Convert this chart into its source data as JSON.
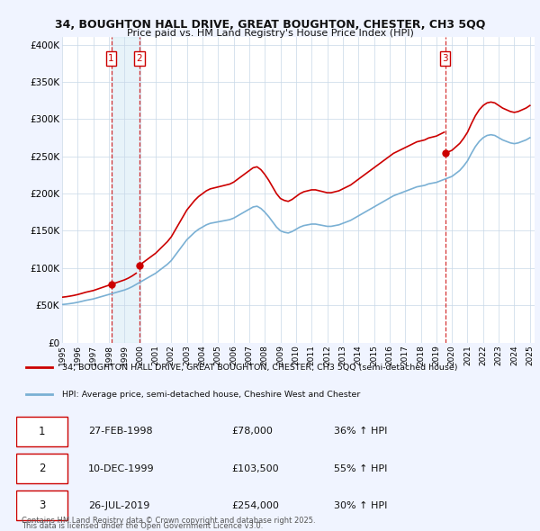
{
  "title1": "34, BOUGHTON HALL DRIVE, GREAT BOUGHTON, CHESTER, CH3 5QQ",
  "title2": "Price paid vs. HM Land Registry's House Price Index (HPI)",
  "legend_line1": "34, BOUGHTON HALL DRIVE, GREAT BOUGHTON, CHESTER, CH3 5QQ (semi-detached house)",
  "legend_line2": "HPI: Average price, semi-detached house, Cheshire West and Chester",
  "footer1": "Contains HM Land Registry data © Crown copyright and database right 2025.",
  "footer2": "This data is licensed under the Open Government Licence v3.0.",
  "sale_color": "#cc0000",
  "hpi_color": "#7ab0d4",
  "shade_color": "#d0e8f5",
  "background_color": "#f0f4ff",
  "plot_bg": "#ffffff",
  "ylim": [
    0,
    410000
  ],
  "yticks": [
    0,
    50000,
    100000,
    150000,
    200000,
    250000,
    300000,
    350000,
    400000
  ],
  "ytick_labels": [
    "£0",
    "£50K",
    "£100K",
    "£150K",
    "£200K",
    "£250K",
    "£300K",
    "£350K",
    "£400K"
  ],
  "table_data": [
    [
      "1",
      "27-FEB-1998",
      "£78,000",
      "36% ↑ HPI"
    ],
    [
      "2",
      "10-DEC-1999",
      "£103,500",
      "55% ↑ HPI"
    ],
    [
      "3",
      "26-JUL-2019",
      "£254,000",
      "30% ↑ HPI"
    ]
  ],
  "sale_dates": [
    1998.15,
    1999.94,
    2019.56
  ],
  "sale_prices": [
    78000,
    103500,
    254000
  ],
  "hpi_dates": [
    1995.0,
    1995.25,
    1995.5,
    1995.75,
    1996.0,
    1996.25,
    1996.5,
    1996.75,
    1997.0,
    1997.25,
    1997.5,
    1997.75,
    1998.0,
    1998.25,
    1998.5,
    1998.75,
    1999.0,
    1999.25,
    1999.5,
    1999.75,
    2000.0,
    2000.25,
    2000.5,
    2000.75,
    2001.0,
    2001.25,
    2001.5,
    2001.75,
    2002.0,
    2002.25,
    2002.5,
    2002.75,
    2003.0,
    2003.25,
    2003.5,
    2003.75,
    2004.0,
    2004.25,
    2004.5,
    2004.75,
    2005.0,
    2005.25,
    2005.5,
    2005.75,
    2006.0,
    2006.25,
    2006.5,
    2006.75,
    2007.0,
    2007.25,
    2007.5,
    2007.75,
    2008.0,
    2008.25,
    2008.5,
    2008.75,
    2009.0,
    2009.25,
    2009.5,
    2009.75,
    2010.0,
    2010.25,
    2010.5,
    2010.75,
    2011.0,
    2011.25,
    2011.5,
    2011.75,
    2012.0,
    2012.25,
    2012.5,
    2012.75,
    2013.0,
    2013.25,
    2013.5,
    2013.75,
    2014.0,
    2014.25,
    2014.5,
    2014.75,
    2015.0,
    2015.25,
    2015.5,
    2015.75,
    2016.0,
    2016.25,
    2016.5,
    2016.75,
    2017.0,
    2017.25,
    2017.5,
    2017.75,
    2018.0,
    2018.25,
    2018.5,
    2018.75,
    2019.0,
    2019.25,
    2019.5,
    2019.75,
    2020.0,
    2020.25,
    2020.5,
    2020.75,
    2021.0,
    2021.25,
    2021.5,
    2021.75,
    2022.0,
    2022.25,
    2022.5,
    2022.75,
    2023.0,
    2023.25,
    2023.5,
    2023.75,
    2024.0,
    2024.25,
    2024.5,
    2024.75,
    2025.0
  ],
  "hpi_values": [
    51000,
    51500,
    52200,
    53000,
    54000,
    55200,
    56500,
    57500,
    58500,
    60000,
    61500,
    63000,
    64500,
    66000,
    67500,
    69000,
    70500,
    72500,
    75000,
    78000,
    81000,
    84000,
    87000,
    90000,
    93000,
    97000,
    101000,
    105000,
    110000,
    117000,
    124000,
    131000,
    138000,
    143000,
    148000,
    152000,
    155000,
    158000,
    160000,
    161000,
    162000,
    163000,
    164000,
    165000,
    167000,
    170000,
    173000,
    176000,
    179000,
    182000,
    183000,
    180000,
    175000,
    169000,
    162000,
    155000,
    150000,
    148000,
    147000,
    149000,
    152000,
    155000,
    157000,
    158000,
    159000,
    159000,
    158000,
    157000,
    156000,
    156000,
    157000,
    158000,
    160000,
    162000,
    164000,
    167000,
    170000,
    173000,
    176000,
    179000,
    182000,
    185000,
    188000,
    191000,
    194000,
    197000,
    199000,
    201000,
    203000,
    205000,
    207000,
    209000,
    210000,
    211000,
    213000,
    214000,
    215000,
    217000,
    219000,
    221000,
    223000,
    227000,
    231000,
    237000,
    244000,
    254000,
    263000,
    270000,
    275000,
    278000,
    279000,
    278000,
    275000,
    272000,
    270000,
    268000,
    267000,
    268000,
    270000,
    272000,
    275000
  ],
  "xtick_positions": [
    1995,
    1996,
    1997,
    1998,
    1999,
    2000,
    2001,
    2002,
    2003,
    2004,
    2005,
    2006,
    2007,
    2008,
    2009,
    2010,
    2011,
    2012,
    2013,
    2014,
    2015,
    2016,
    2017,
    2018,
    2019,
    2020,
    2021,
    2022,
    2023,
    2024,
    2025
  ],
  "xtick_labels": [
    "1995",
    "1996",
    "1997",
    "1998",
    "1999",
    "2000",
    "2001",
    "2002",
    "2003",
    "2004",
    "2005",
    "2006",
    "2007",
    "2008",
    "2009",
    "2010",
    "2011",
    "2012",
    "2013",
    "2014",
    "2015",
    "2016",
    "2017",
    "2018",
    "2019",
    "2020",
    "2021",
    "2022",
    "2023",
    "2024",
    "2025"
  ]
}
